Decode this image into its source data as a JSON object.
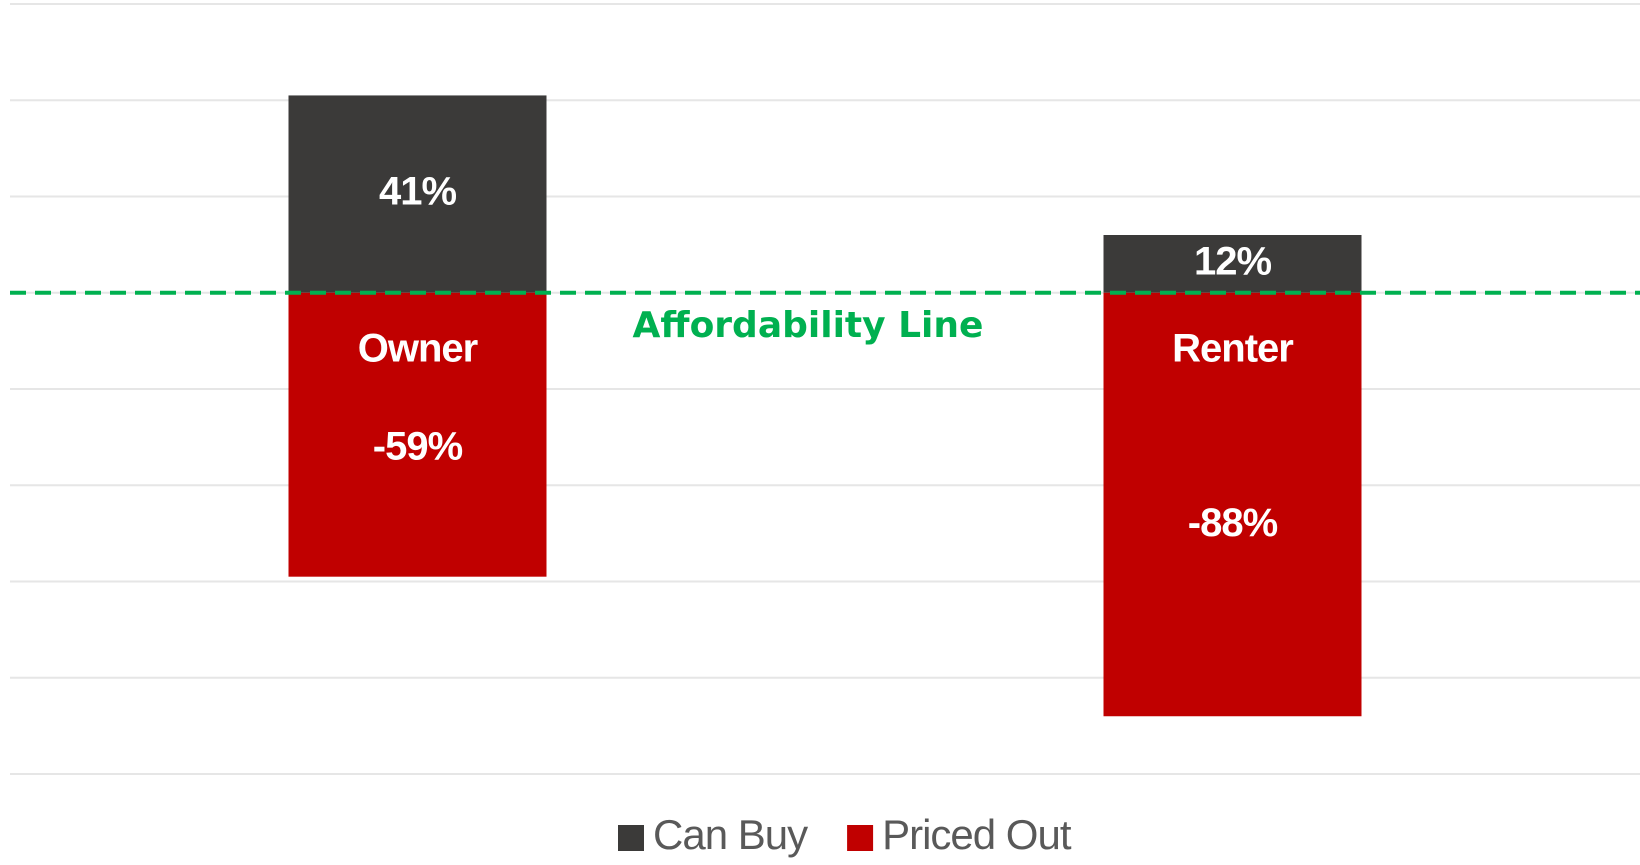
{
  "chart_data": {
    "type": "bar",
    "stacked": true,
    "categories": [
      "Owner",
      "Renter"
    ],
    "series": [
      {
        "name": "Can Buy",
        "color": "#3b3a39",
        "values": [
          41,
          12
        ],
        "value_labels": [
          "41%",
          "12%"
        ]
      },
      {
        "name": "Priced Out",
        "color": "#c00000",
        "values": [
          -59,
          -88
        ],
        "value_labels": [
          "-59%",
          "-88%"
        ]
      }
    ],
    "ylim": [
      -100,
      60
    ],
    "yticks": [
      -100,
      -80,
      -60,
      -40,
      -20,
      0,
      20,
      40,
      60
    ],
    "grid": true,
    "annotation": {
      "text": "Affordability Line",
      "value": 0,
      "color": "#00b050"
    },
    "legend": "bottom"
  }
}
